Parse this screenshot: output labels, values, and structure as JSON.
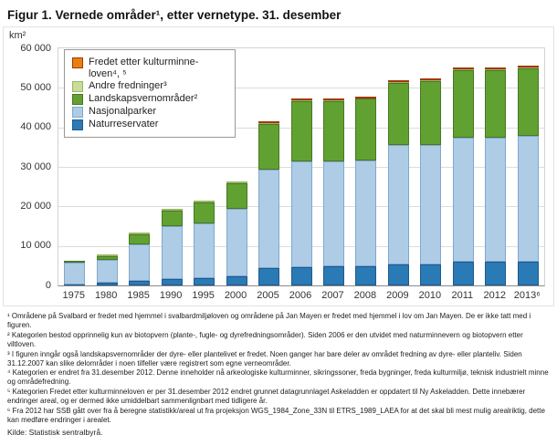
{
  "figure": {
    "title": "Figur 1. Vernede områder¹, etter vernetype. 31. desember",
    "source": "Kilde: Statistisk sentralbyrå."
  },
  "chart_data": {
    "type": "bar",
    "stacked": true,
    "title": "Figur 1. Vernede områder¹, etter vernetype. 31. desember",
    "ylabel": "km²",
    "xlabel": "",
    "ylim": [
      0,
      60000
    ],
    "grid": true,
    "legend_position": "top-left-inside",
    "categories": [
      "1975",
      "1980",
      "1985",
      "1990",
      "1995",
      "2000",
      "2005",
      "2006",
      "2007",
      "2008",
      "2009",
      "2010",
      "2011",
      "2012",
      "2013⁶"
    ],
    "yticks": [
      {
        "value": 0,
        "label": "0"
      },
      {
        "value": 10000,
        "label": "10 000"
      },
      {
        "value": 20000,
        "label": "20 000"
      },
      {
        "value": 30000,
        "label": "30 000"
      },
      {
        "value": 40000,
        "label": "40 000"
      },
      {
        "value": 50000,
        "label": "50 000"
      },
      {
        "value": 60000,
        "label": "60 000"
      }
    ],
    "series": [
      {
        "name": "Naturreservater",
        "legend_label": "Naturreservater",
        "color": "#2a7ab5",
        "border": "#1d5a8f",
        "values": [
          300,
          600,
          1100,
          1600,
          1900,
          2200,
          4500,
          4700,
          4800,
          4900,
          5200,
          5400,
          5900,
          6000,
          6100
        ]
      },
      {
        "name": "Nasjonalparker",
        "legend_label": "Nasjonalparker",
        "color": "#aecce5",
        "border": "#7fa8cf",
        "values": [
          5400,
          5800,
          9300,
          13300,
          13900,
          17200,
          24700,
          26800,
          26700,
          26800,
          30300,
          30200,
          31400,
          31300,
          31700
        ]
      },
      {
        "name": "Landskapsvernområder",
        "legend_label": "Landskapsvernområder²",
        "color": "#61a131",
        "border": "#47781f",
        "values": [
          300,
          1100,
          2500,
          4000,
          5100,
          6400,
          11700,
          15200,
          15200,
          15500,
          15700,
          16200,
          17100,
          17100,
          17200
        ]
      },
      {
        "name": "Andre fredninger",
        "legend_label": "Andre fredninger³",
        "color": "#c9dc9b",
        "border": "#99b668",
        "values": [
          0,
          100,
          100,
          100,
          100,
          100,
          150,
          150,
          150,
          150,
          200,
          200,
          200,
          200,
          200
        ]
      },
      {
        "name": "Fredet etter kulturminneloven",
        "legend_label": "Fredet etter kulturminne-loven⁴, ⁵",
        "color": "#e8800f",
        "border": "#a63603",
        "values": [
          0,
          0,
          0,
          0,
          0,
          0,
          100,
          100,
          100,
          100,
          300,
          300,
          300,
          400,
          500
        ]
      }
    ]
  },
  "footnotes": [
    "¹ Områdene på Svalbard er fredet med hjemmel i svalbardmiljøloven og områdene på Jan Mayen er fredet med hjemmel i lov om Jan Mayen. De er ikke tatt med i figuren.",
    "² Kategorien bestod opprinnelig kun av biotopvern (plante-, fugle- og dyrefredningsområder). Siden 2006 er den utvidet med naturminnevern og biotopvern etter viltloven.",
    "³ I figuren inngår også landskapsvernområder der dyre- eller plantelivet er fredet. Noen ganger har bare deler av området fredning av dyre- eller planteliv. Siden 31.12.2007 kan slike delområder i noen tilfeller være registrert som egne verneområder.",
    "⁴ Kategorien er endret fra 31.desember 2012. Denne inneholder nå arkeologiske kulturminner, sikringssoner, freda bygninger, freda kulturmiljø, teknisk industrielt minne og områdefredning.",
    "⁵ Kategorien Fredet etter kulturminneloven er per 31.desember 2012 endret grunnet datagrunnlaget Askeladden er oppdatert til Ny Askeladden. Dette innebærer endringer areal, og er dermed ikke umiddelbart sammenlignbart med tidligere år.",
    "⁶ Fra 2012 har SSB gått over fra å beregne statistikk/areal ut fra projeksjon WGS_1984_Zone_33N til ETRS_1989_LAEA for at det skal bli mest mulig arealriktig, dette kan medføre endringer i arealet."
  ]
}
